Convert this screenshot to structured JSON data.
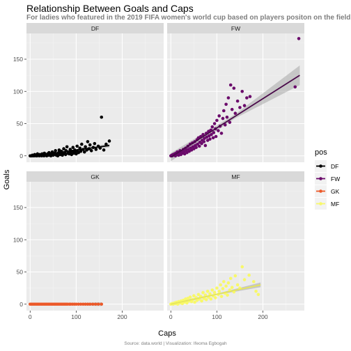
{
  "title": "Relationship Between Goals and Caps",
  "subtitle": "For ladies who featured in the 2019 FIFA women's world cup based on players positon on the field",
  "caption": "Source: data.world | Visualization: Ifeoma Egbogah",
  "chart_data": {
    "type": "scatter",
    "xlabel": "Caps",
    "ylabel": "Goals",
    "xlim": [
      -8,
      290
    ],
    "ylim": [
      -10,
      190
    ],
    "xticks": [
      0,
      100,
      200
    ],
    "yticks": [
      0,
      50,
      100,
      150
    ],
    "grid": true,
    "legend": {
      "title": "pos",
      "placement": "right",
      "entries": [
        {
          "label": "DF",
          "color": "#000000"
        },
        {
          "label": "FW",
          "color": "#6b0b6b"
        },
        {
          "label": "GK",
          "color": "#ec5a2a"
        },
        {
          "label": "MF",
          "color": "#f8f86a"
        }
      ]
    },
    "panels": [
      {
        "name": "DF",
        "color": "#000000",
        "line_color": "#000000",
        "trend": {
          "x": [
            0,
            172
          ],
          "y": [
            -1,
            16
          ]
        },
        "points": [
          [
            0,
            0
          ],
          [
            2,
            0
          ],
          [
            4,
            0
          ],
          [
            5,
            1
          ],
          [
            7,
            0
          ],
          [
            9,
            0
          ],
          [
            10,
            2
          ],
          [
            12,
            1
          ],
          [
            13,
            0
          ],
          [
            15,
            0
          ],
          [
            16,
            3
          ],
          [
            18,
            1
          ],
          [
            20,
            0
          ],
          [
            21,
            2
          ],
          [
            23,
            1
          ],
          [
            25,
            0
          ],
          [
            26,
            3
          ],
          [
            28,
            2
          ],
          [
            30,
            0
          ],
          [
            31,
            4
          ],
          [
            33,
            1
          ],
          [
            35,
            2
          ],
          [
            36,
            0
          ],
          [
            38,
            3
          ],
          [
            40,
            1
          ],
          [
            41,
            5
          ],
          [
            43,
            2
          ],
          [
            45,
            0
          ],
          [
            46,
            3
          ],
          [
            48,
            6
          ],
          [
            50,
            1
          ],
          [
            52,
            2
          ],
          [
            53,
            4
          ],
          [
            55,
            8
          ],
          [
            57,
            1
          ],
          [
            58,
            3
          ],
          [
            60,
            0
          ],
          [
            62,
            5
          ],
          [
            63,
            9
          ],
          [
            65,
            2
          ],
          [
            67,
            4
          ],
          [
            68,
            7
          ],
          [
            70,
            1
          ],
          [
            72,
            3
          ],
          [
            73,
            11
          ],
          [
            75,
            5
          ],
          [
            77,
            2
          ],
          [
            78,
            8
          ],
          [
            80,
            14
          ],
          [
            82,
            4
          ],
          [
            83,
            6
          ],
          [
            85,
            3
          ],
          [
            87,
            10
          ],
          [
            88,
            5
          ],
          [
            90,
            2
          ],
          [
            92,
            7
          ],
          [
            93,
            13
          ],
          [
            95,
            4
          ],
          [
            97,
            9
          ],
          [
            98,
            6
          ],
          [
            100,
            3
          ],
          [
            102,
            15
          ],
          [
            103,
            8
          ],
          [
            105,
            5
          ],
          [
            108,
            12
          ],
          [
            110,
            7
          ],
          [
            112,
            18
          ],
          [
            115,
            10
          ],
          [
            118,
            6
          ],
          [
            120,
            14
          ],
          [
            123,
            9
          ],
          [
            125,
            22
          ],
          [
            128,
            11
          ],
          [
            130,
            17
          ],
          [
            133,
            8
          ],
          [
            137,
            13
          ],
          [
            140,
            19
          ],
          [
            143,
            10
          ],
          [
            148,
            15
          ],
          [
            152,
            12
          ],
          [
            155,
            60
          ],
          [
            160,
            9
          ],
          [
            165,
            18
          ],
          [
            172,
            23
          ]
        ]
      },
      {
        "name": "FW",
        "color": "#6b0b6b",
        "line_color": "#4a0a4a",
        "trend": {
          "x": [
            0,
            280
          ],
          "y": [
            -2,
            125
          ]
        },
        "points": [
          [
            0,
            0
          ],
          [
            2,
            1
          ],
          [
            3,
            0
          ],
          [
            5,
            2
          ],
          [
            7,
            1
          ],
          [
            8,
            3
          ],
          [
            10,
            0
          ],
          [
            11,
            4
          ],
          [
            13,
            2
          ],
          [
            14,
            6
          ],
          [
            16,
            3
          ],
          [
            17,
            1
          ],
          [
            19,
            5
          ],
          [
            20,
            8
          ],
          [
            22,
            2
          ],
          [
            23,
            7
          ],
          [
            25,
            4
          ],
          [
            27,
            10
          ],
          [
            28,
            6
          ],
          [
            30,
            3
          ],
          [
            32,
            12
          ],
          [
            33,
            8
          ],
          [
            35,
            5
          ],
          [
            37,
            15
          ],
          [
            38,
            10
          ],
          [
            40,
            7
          ],
          [
            42,
            18
          ],
          [
            43,
            12
          ],
          [
            45,
            9
          ],
          [
            47,
            20
          ],
          [
            48,
            14
          ],
          [
            50,
            11
          ],
          [
            52,
            22
          ],
          [
            53,
            16
          ],
          [
            55,
            13
          ],
          [
            57,
            25
          ],
          [
            58,
            18
          ],
          [
            60,
            28
          ],
          [
            62,
            15
          ],
          [
            63,
            21
          ],
          [
            65,
            30
          ],
          [
            67,
            19
          ],
          [
            68,
            24
          ],
          [
            70,
            33
          ],
          [
            72,
            22
          ],
          [
            73,
            27
          ],
          [
            75,
            16
          ],
          [
            77,
            35
          ],
          [
            78,
            29
          ],
          [
            80,
            24
          ],
          [
            82,
            38
          ],
          [
            83,
            31
          ],
          [
            85,
            26
          ],
          [
            87,
            40
          ],
          [
            88,
            33
          ],
          [
            90,
            45
          ],
          [
            92,
            28
          ],
          [
            93,
            36
          ],
          [
            95,
            50
          ],
          [
            97,
            42
          ],
          [
            98,
            30
          ],
          [
            100,
            55
          ],
          [
            103,
            39
          ],
          [
            105,
            62
          ],
          [
            107,
            46
          ],
          [
            110,
            35
          ],
          [
            113,
            58
          ],
          [
            115,
            70
          ],
          [
            118,
            48
          ],
          [
            120,
            80
          ],
          [
            122,
            60
          ],
          [
            125,
            90
          ],
          [
            128,
            52
          ],
          [
            130,
            110
          ],
          [
            133,
            72
          ],
          [
            137,
            105
          ],
          [
            140,
            66
          ],
          [
            145,
            85
          ],
          [
            150,
            75
          ],
          [
            155,
            100
          ],
          [
            160,
            78
          ],
          [
            165,
            90
          ],
          [
            172,
            92
          ],
          [
            270,
            107
          ],
          [
            278,
            182
          ]
        ]
      },
      {
        "name": "GK",
        "color": "#ec5a2a",
        "line_color": "#ec5a2a",
        "trend": {
          "x": [
            0,
            155
          ],
          "y": [
            0,
            0
          ]
        },
        "points": [
          [
            0,
            0
          ],
          [
            3,
            0
          ],
          [
            6,
            0
          ],
          [
            9,
            0
          ],
          [
            12,
            0
          ],
          [
            15,
            0
          ],
          [
            18,
            0
          ],
          [
            21,
            0
          ],
          [
            24,
            0
          ],
          [
            27,
            0
          ],
          [
            30,
            0
          ],
          [
            33,
            0
          ],
          [
            36,
            0
          ],
          [
            39,
            0
          ],
          [
            42,
            0
          ],
          [
            45,
            0
          ],
          [
            48,
            0
          ],
          [
            51,
            0
          ],
          [
            54,
            0
          ],
          [
            57,
            0
          ],
          [
            60,
            0
          ],
          [
            63,
            0
          ],
          [
            66,
            0
          ],
          [
            69,
            0
          ],
          [
            72,
            0
          ],
          [
            75,
            0
          ],
          [
            78,
            0
          ],
          [
            81,
            0
          ],
          [
            85,
            0
          ],
          [
            88,
            0
          ],
          [
            92,
            0
          ],
          [
            96,
            0
          ],
          [
            100,
            0
          ],
          [
            105,
            0
          ],
          [
            110,
            0
          ],
          [
            115,
            0
          ],
          [
            120,
            0
          ],
          [
            125,
            0
          ],
          [
            130,
            0
          ],
          [
            136,
            0
          ],
          [
            142,
            0
          ],
          [
            148,
            0
          ],
          [
            155,
            0
          ]
        ]
      },
      {
        "name": "MF",
        "color": "#f8f86a",
        "line_color": "#e6e65a",
        "trend": {
          "x": [
            0,
            195
          ],
          "y": [
            0,
            30
          ]
        },
        "points": [
          [
            0,
            0
          ],
          [
            3,
            1
          ],
          [
            5,
            0
          ],
          [
            8,
            2
          ],
          [
            10,
            1
          ],
          [
            12,
            3
          ],
          [
            15,
            0
          ],
          [
            17,
            4
          ],
          [
            20,
            2
          ],
          [
            22,
            5
          ],
          [
            25,
            1
          ],
          [
            27,
            6
          ],
          [
            30,
            3
          ],
          [
            32,
            8
          ],
          [
            35,
            2
          ],
          [
            37,
            9
          ],
          [
            40,
            5
          ],
          [
            42,
            11
          ],
          [
            45,
            4
          ],
          [
            47,
            7
          ],
          [
            50,
            13
          ],
          [
            52,
            3
          ],
          [
            55,
            10
          ],
          [
            57,
            6
          ],
          [
            60,
            15
          ],
          [
            62,
            8
          ],
          [
            65,
            12
          ],
          [
            67,
            5
          ],
          [
            70,
            18
          ],
          [
            72,
            9
          ],
          [
            75,
            14
          ],
          [
            77,
            7
          ],
          [
            80,
            20
          ],
          [
            82,
            11
          ],
          [
            85,
            16
          ],
          [
            87,
            8
          ],
          [
            90,
            22
          ],
          [
            92,
            13
          ],
          [
            95,
            18
          ],
          [
            97,
            10
          ],
          [
            100,
            25
          ],
          [
            103,
            15
          ],
          [
            105,
            20
          ],
          [
            108,
            30
          ],
          [
            110,
            12
          ],
          [
            113,
            24
          ],
          [
            115,
            35
          ],
          [
            118,
            17
          ],
          [
            120,
            28
          ],
          [
            123,
            14
          ],
          [
            125,
            33
          ],
          [
            128,
            22
          ],
          [
            130,
            40
          ],
          [
            133,
            26
          ],
          [
            137,
            19
          ],
          [
            140,
            44
          ],
          [
            145,
            30
          ],
          [
            150,
            25
          ],
          [
            155,
            58
          ],
          [
            160,
            38
          ],
          [
            170,
            45
          ],
          [
            180,
            35
          ],
          [
            185,
            20
          ],
          [
            190,
            15
          ]
        ]
      }
    ]
  }
}
